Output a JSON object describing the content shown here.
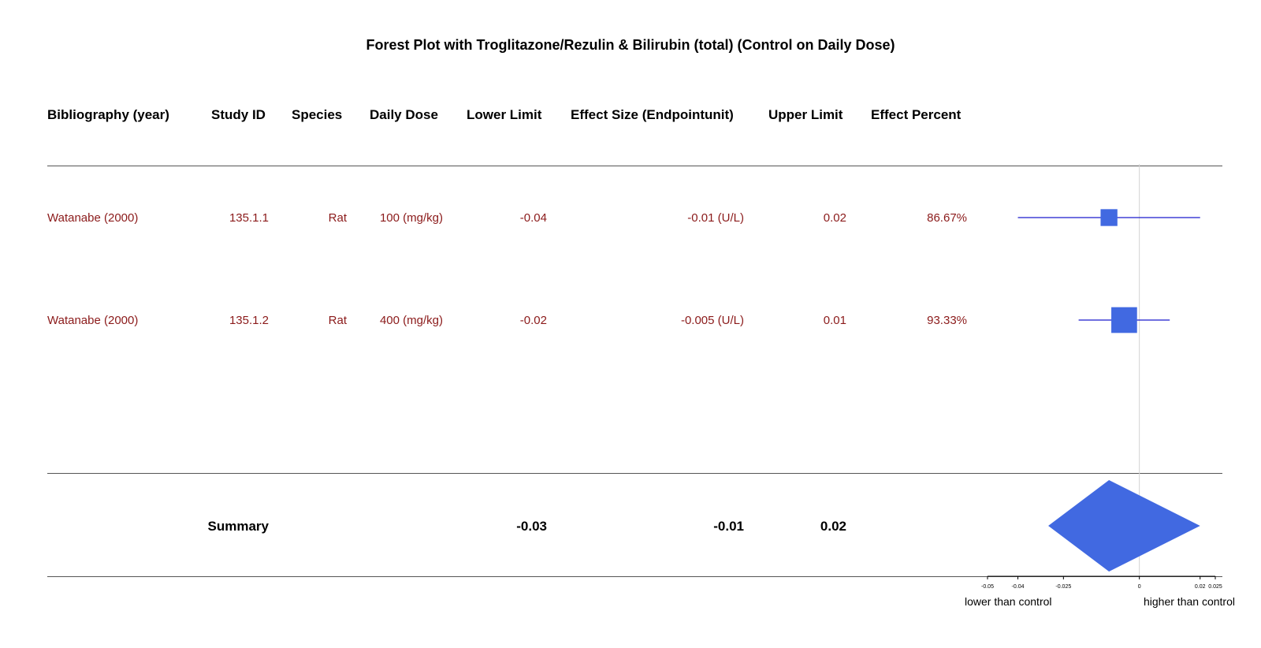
{
  "chart_data": {
    "type": "forest",
    "title": "Forest Plot with Troglitazone/Rezulin & Bilirubin (total) (Control on Daily Dose)",
    "columns": [
      "Bibliography (year)",
      "Study ID",
      "Species",
      "Daily Dose",
      "Lower Limit",
      "Effect Size (Endpointunit)",
      "Upper Limit",
      "Effect Percent"
    ],
    "rows": [
      {
        "bibliography": "Watanabe (2000)",
        "study_id": "135.1.1",
        "species": "Rat",
        "dose": "100 (mg/kg)",
        "lower_label": "-0.04",
        "effect_label": "-0.01 (U/L)",
        "upper_label": "0.02",
        "percent_label": "86.67%",
        "lower": -0.04,
        "effect": -0.01,
        "upper": 0.02,
        "weight": 86.67
      },
      {
        "bibliography": "Watanabe (2000)",
        "study_id": "135.1.2",
        "species": "Rat",
        "dose": "400 (mg/kg)",
        "lower_label": "-0.02",
        "effect_label": "-0.005 (U/L)",
        "upper_label": "0.01",
        "percent_label": "93.33%",
        "lower": -0.02,
        "effect": -0.005,
        "upper": 0.01,
        "weight": 93.33
      }
    ],
    "summary": {
      "label": "Summary",
      "lower_label": "-0.03",
      "effect_label": "-0.01",
      "upper_label": "0.02",
      "lower": -0.03,
      "effect": -0.01,
      "upper": 0.02
    },
    "xlim": [
      -0.05,
      0.025
    ],
    "x_ticks": [
      -0.05,
      -0.04,
      -0.025,
      0,
      0.02,
      0.025
    ],
    "x_tick_labels": [
      "-0.05",
      "-0.04",
      "-0.025",
      "0",
      "0.02",
      "0.025"
    ],
    "xlabel_left": "lower than control",
    "xlabel_right": "higher than control",
    "reference_line": 0,
    "colors": {
      "marker": "#4169e1",
      "ci_line": "#1a1acd",
      "row_text": "#8b1a1a",
      "ref_line": "#d3d3d3"
    }
  }
}
